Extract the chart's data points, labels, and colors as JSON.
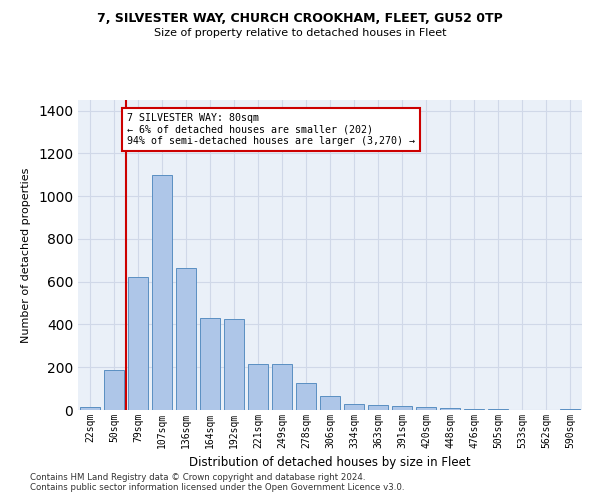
{
  "title1": "7, SILVESTER WAY, CHURCH CROOKHAM, FLEET, GU52 0TP",
  "title2": "Size of property relative to detached houses in Fleet",
  "xlabel": "Distribution of detached houses by size in Fleet",
  "ylabel": "Number of detached properties",
  "categories": [
    "22sqm",
    "50sqm",
    "79sqm",
    "107sqm",
    "136sqm",
    "164sqm",
    "192sqm",
    "221sqm",
    "249sqm",
    "278sqm",
    "306sqm",
    "334sqm",
    "363sqm",
    "391sqm",
    "420sqm",
    "448sqm",
    "476sqm",
    "505sqm",
    "533sqm",
    "562sqm",
    "590sqm"
  ],
  "values": [
    15,
    185,
    620,
    1100,
    665,
    430,
    425,
    215,
    215,
    125,
    65,
    28,
    25,
    20,
    12,
    8,
    5,
    3,
    2,
    1,
    3
  ],
  "bar_color": "#aec6e8",
  "bar_edge_color": "#5a8fc2",
  "vline_color": "#cc0000",
  "annotation_text": "7 SILVESTER WAY: 80sqm\n← 6% of detached houses are smaller (202)\n94% of semi-detached houses are larger (3,270) →",
  "annotation_box_color": "#ffffff",
  "annotation_box_edge": "#cc0000",
  "ylim": [
    0,
    1450
  ],
  "yticks": [
    0,
    200,
    400,
    600,
    800,
    1000,
    1200,
    1400
  ],
  "grid_color": "#d0d8e8",
  "background_color": "#eaf0f8",
  "footer1": "Contains HM Land Registry data © Crown copyright and database right 2024.",
  "footer2": "Contains public sector information licensed under the Open Government Licence v3.0."
}
